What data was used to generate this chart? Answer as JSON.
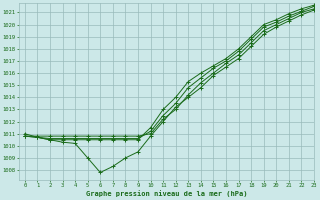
{
  "title": "Graphe pression niveau de la mer (hPa)",
  "bg_color": "#cce8e8",
  "grid_color": "#99bbbb",
  "line_color": "#1a6b1a",
  "marker_color": "#1a6b1a",
  "xlim": [
    -0.5,
    23
  ],
  "ylim": [
    1007.2,
    1021.8
  ],
  "yticks": [
    1008,
    1009,
    1010,
    1011,
    1012,
    1013,
    1014,
    1015,
    1016,
    1017,
    1018,
    1019,
    1020,
    1021
  ],
  "xticks": [
    0,
    1,
    2,
    3,
    4,
    5,
    6,
    7,
    8,
    9,
    10,
    11,
    12,
    13,
    14,
    15,
    16,
    17,
    18,
    19,
    20,
    21,
    22,
    23
  ],
  "series": {
    "line_straight1": [
      1010.8,
      1010.8,
      1010.8,
      1010.8,
      1010.8,
      1010.8,
      1010.8,
      1010.8,
      1010.8,
      1010.8,
      1011.0,
      1012.2,
      1013.0,
      1014.2,
      1015.2,
      1016.0,
      1016.8,
      1017.5,
      1018.5,
      1019.5,
      1020.0,
      1020.5,
      1021.0,
      1021.3
    ],
    "line_straight2": [
      1010.8,
      1010.7,
      1010.6,
      1010.6,
      1010.6,
      1010.6,
      1010.6,
      1010.6,
      1010.6,
      1010.6,
      1011.2,
      1012.5,
      1013.5,
      1014.8,
      1015.6,
      1016.4,
      1017.0,
      1017.8,
      1018.8,
      1019.8,
      1020.2,
      1020.7,
      1021.1,
      1021.5
    ],
    "line_straight3": [
      1010.8,
      1010.7,
      1010.5,
      1010.5,
      1010.5,
      1010.5,
      1010.5,
      1010.5,
      1010.5,
      1010.5,
      1011.5,
      1013.0,
      1014.0,
      1015.3,
      1016.0,
      1016.6,
      1017.2,
      1018.0,
      1019.0,
      1020.0,
      1020.4,
      1020.9,
      1021.3,
      1021.6
    ],
    "line_zigzag": [
      1011.0,
      1010.7,
      1010.5,
      1010.3,
      1010.2,
      1009.0,
      1007.8,
      1008.3,
      1009.0,
      1009.5,
      1010.8,
      1012.0,
      1013.2,
      1014.0,
      1014.8,
      1015.8,
      1016.5,
      1017.2,
      1018.2,
      1019.2,
      1019.8,
      1020.3,
      1020.8,
      1021.2
    ]
  }
}
